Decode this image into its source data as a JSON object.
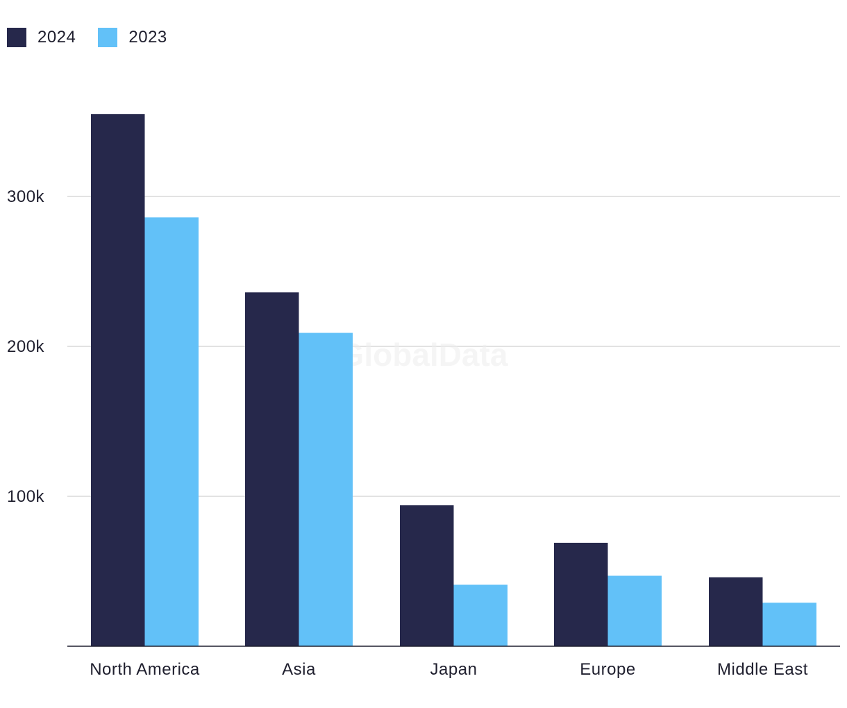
{
  "legend": {
    "items": [
      {
        "label": "2024",
        "color": "#26284b"
      },
      {
        "label": "2023",
        "color": "#62c1f8"
      }
    ]
  },
  "watermark": "GlobalData",
  "chart_data": {
    "type": "bar",
    "categories": [
      "North America",
      "Asia",
      "Japan",
      "Europe",
      "Middle East"
    ],
    "series": [
      {
        "name": "2024",
        "color": "#26284b",
        "values": [
          355000,
          236000,
          94000,
          69000,
          46000
        ]
      },
      {
        "name": "2023",
        "color": "#62c1f8",
        "values": [
          286000,
          209000,
          41000,
          47000,
          29000
        ]
      }
    ],
    "yticks": [
      {
        "value": 100000,
        "label": "100k"
      },
      {
        "value": 200000,
        "label": "200k"
      },
      {
        "value": 300000,
        "label": "300k"
      }
    ],
    "ylim": [
      0,
      400000
    ],
    "grid": true,
    "legend_position": "top-left",
    "title": "",
    "xlabel": "",
    "ylabel": ""
  }
}
